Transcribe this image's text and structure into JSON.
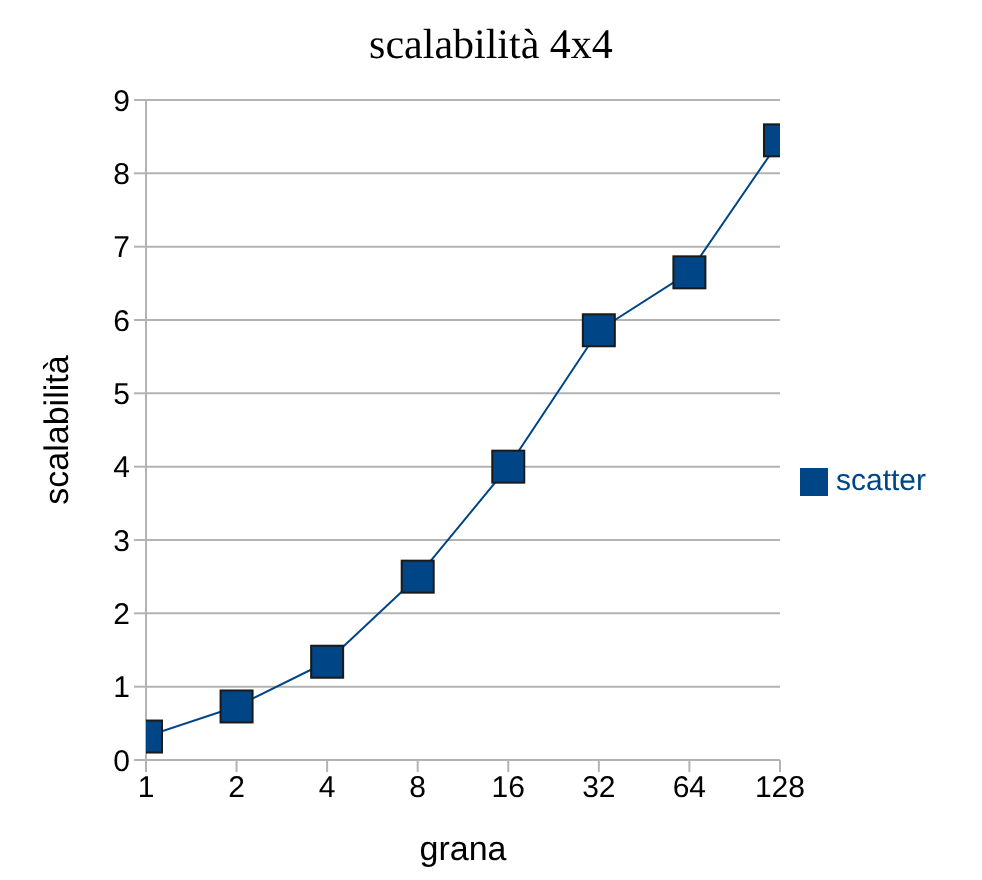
{
  "chart_data": {
    "type": "line",
    "title": "scalabilità 4x4",
    "xlabel": "grana",
    "ylabel": "scalabilità",
    "categories": [
      "1",
      "2",
      "4",
      "8",
      "16",
      "32",
      "64",
      "128"
    ],
    "series": [
      {
        "name": "scatter",
        "color": "#004586",
        "values": [
          0.32,
          0.73,
          1.34,
          2.5,
          4.0,
          5.86,
          6.65,
          8.45
        ]
      }
    ],
    "ylim": [
      0,
      9
    ],
    "yticks": [
      0,
      1,
      2,
      3,
      4,
      5,
      6,
      7,
      8,
      9
    ],
    "grid": "y",
    "legend": "right",
    "marker": "square",
    "line_style": "solid"
  }
}
